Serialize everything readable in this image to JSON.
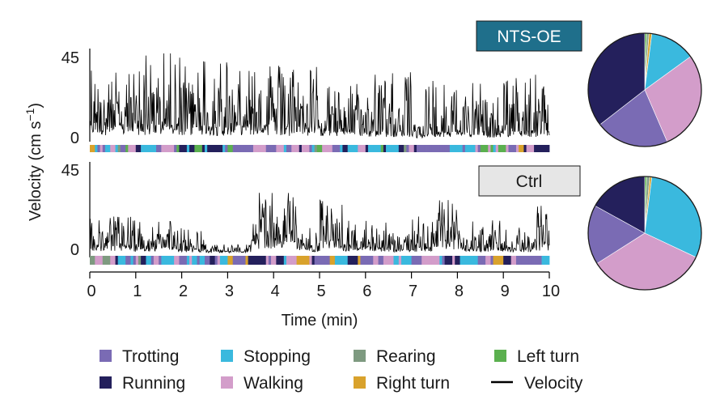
{
  "chart_data": [
    {
      "type": "line",
      "panel": "top",
      "group": "NTS-OE",
      "title": "NTS-OE",
      "title_box_color": "#1f6f8b",
      "x_range_min": [
        0,
        10
      ],
      "y_ticks": [
        "45",
        "0"
      ],
      "ylim": [
        0,
        45
      ],
      "velocity_profile": [
        {
          "t_start": 0.0,
          "t_end": 0.2,
          "base": 8,
          "peak": 38
        },
        {
          "t_start": 0.2,
          "t_end": 1.0,
          "base": 7,
          "peak": 36
        },
        {
          "t_start": 1.0,
          "t_end": 2.0,
          "base": 7,
          "peak": 46
        },
        {
          "t_start": 2.0,
          "t_end": 3.0,
          "base": 6,
          "peak": 44
        },
        {
          "t_start": 3.0,
          "t_end": 4.0,
          "base": 7,
          "peak": 42
        },
        {
          "t_start": 4.0,
          "t_end": 5.0,
          "base": 6,
          "peak": 40
        },
        {
          "t_start": 5.0,
          "t_end": 6.0,
          "base": 5,
          "peak": 30
        },
        {
          "t_start": 6.0,
          "t_end": 7.0,
          "base": 4,
          "peak": 36
        },
        {
          "t_start": 7.0,
          "t_end": 7.3,
          "base": 2,
          "peak": 12
        },
        {
          "t_start": 7.3,
          "t_end": 8.5,
          "base": 4,
          "peak": 33
        },
        {
          "t_start": 8.5,
          "t_end": 9.0,
          "base": 3,
          "peak": 22
        },
        {
          "t_start": 9.0,
          "t_end": 10.0,
          "base": 4,
          "peak": 34
        }
      ],
      "behavior_sequence": [
        "running",
        "trotting",
        "running",
        "stopping",
        "running",
        "trotting",
        "walking",
        "running",
        "left_turn",
        "running",
        "trotting",
        "walking",
        "running",
        "stopping",
        "running",
        "trotting",
        "running",
        "walking",
        "stopping",
        "trotting",
        "running",
        "walking",
        "rearing",
        "running",
        "trotting",
        "stopping",
        "walking",
        "running",
        "trotting",
        "left_turn",
        "walking",
        "stopping",
        "running",
        "trotting",
        "walking",
        "right_turn",
        "stopping",
        "walking",
        "trotting"
      ],
      "pie": [
        {
          "category": "running",
          "value": 35.5
        },
        {
          "category": "trotting",
          "value": 21.0
        },
        {
          "category": "walking",
          "value": 28.5
        },
        {
          "category": "stopping",
          "value": 13.0
        },
        {
          "category": "rearing",
          "value": 0.6
        },
        {
          "category": "right_turn",
          "value": 0.8
        },
        {
          "category": "left_turn",
          "value": 0.6
        }
      ]
    },
    {
      "type": "line",
      "panel": "bottom",
      "group": "Ctrl",
      "title": "Ctrl",
      "title_box_color": "#e6e6e6",
      "x_range_min": [
        0,
        10
      ],
      "y_ticks": [
        "45",
        "0"
      ],
      "ylim": [
        0,
        45
      ],
      "x_ticks": [
        "0",
        "1",
        "2",
        "3",
        "4",
        "5",
        "6",
        "7",
        "8",
        "9",
        "10"
      ],
      "xlabel": "Time (min)",
      "velocity_profile": [
        {
          "t_start": 0.0,
          "t_end": 0.9,
          "base": 4,
          "peak": 20
        },
        {
          "t_start": 0.9,
          "t_end": 1.8,
          "base": 3,
          "peak": 18
        },
        {
          "t_start": 1.8,
          "t_end": 2.5,
          "base": 2,
          "peak": 14
        },
        {
          "t_start": 2.5,
          "t_end": 3.5,
          "base": 1,
          "peak": 5
        },
        {
          "t_start": 3.5,
          "t_end": 4.5,
          "base": 8,
          "peak": 33
        },
        {
          "t_start": 4.5,
          "t_end": 5.0,
          "base": 3,
          "peak": 14
        },
        {
          "t_start": 5.0,
          "t_end": 5.5,
          "base": 6,
          "peak": 30
        },
        {
          "t_start": 5.5,
          "t_end": 6.5,
          "base": 3,
          "peak": 18
        },
        {
          "t_start": 6.5,
          "t_end": 7.0,
          "base": 2,
          "peak": 12
        },
        {
          "t_start": 7.0,
          "t_end": 7.5,
          "base": 3,
          "peak": 20
        },
        {
          "t_start": 7.5,
          "t_end": 8.0,
          "base": 6,
          "peak": 30
        },
        {
          "t_start": 8.0,
          "t_end": 9.0,
          "base": 3,
          "peak": 18
        },
        {
          "t_start": 9.0,
          "t_end": 9.7,
          "base": 2,
          "peak": 14
        },
        {
          "t_start": 9.7,
          "t_end": 10.0,
          "base": 5,
          "peak": 26
        }
      ],
      "behavior_sequence": [
        "trotting",
        "walking",
        "stopping",
        "walking",
        "trotting",
        "stopping",
        "walking",
        "right_turn",
        "stopping",
        "walking",
        "stopping",
        "walking",
        "trotting",
        "running",
        "trotting",
        "stopping",
        "walking",
        "running",
        "trotting",
        "stopping",
        "walking",
        "rearing",
        "stopping",
        "walking",
        "trotting",
        "running",
        "stopping",
        "walking",
        "stopping",
        "trotting",
        "walking",
        "right_turn",
        "stopping",
        "running",
        "trotting"
      ],
      "pie": [
        {
          "category": "running",
          "value": 17.0
        },
        {
          "category": "trotting",
          "value": 17.0
        },
        {
          "category": "walking",
          "value": 34.0
        },
        {
          "category": "stopping",
          "value": 30.0
        },
        {
          "category": "rearing",
          "value": 0.8
        },
        {
          "category": "right_turn",
          "value": 0.6
        },
        {
          "category": "left_turn",
          "value": 0.6
        }
      ]
    }
  ],
  "ylabel": "Velocity (cm s",
  "ylabel_sup": "−1",
  "ylabel_end": ")",
  "categories": {
    "trotting": {
      "label": "Trotting",
      "color": "#7a6bb4"
    },
    "running": {
      "label": "Running",
      "color": "#24205c"
    },
    "stopping": {
      "label": "Stopping",
      "color": "#3ab9de"
    },
    "walking": {
      "label": "Walking",
      "color": "#d39dca"
    },
    "rearing": {
      "label": "Rearing",
      "color": "#7e9a80"
    },
    "right_turn": {
      "label": "Right turn",
      "color": "#d9a22c"
    },
    "left_turn": {
      "label": "Left turn",
      "color": "#5bb04f"
    }
  },
  "legend": {
    "items": [
      {
        "key": "trotting",
        "label": "Trotting"
      },
      {
        "key": "stopping",
        "label": "Stopping"
      },
      {
        "key": "rearing",
        "label": "Rearing"
      },
      {
        "key": "left_turn",
        "label": "Left turn"
      },
      {
        "key": "running",
        "label": "Running"
      },
      {
        "key": "walking",
        "label": "Walking"
      },
      {
        "key": "right_turn",
        "label": "Right turn"
      }
    ],
    "velocity_label": "Velocity",
    "placement": "bottom"
  }
}
